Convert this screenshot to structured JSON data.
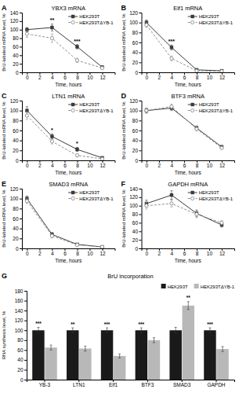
{
  "chart_data": [
    {
      "type": "line",
      "panel_label": "A",
      "title": "YBX3 mRNA",
      "xlabel": "Time, hours",
      "ylabel": "BrU-labeled mRNA level, %",
      "x": [
        0,
        4,
        8,
        12
      ],
      "xlim": [
        -0.8,
        14
      ],
      "xticks": [
        0,
        2,
        4,
        6,
        8,
        10,
        12
      ],
      "ylim": [
        0,
        140
      ],
      "yticks": [
        0,
        20,
        40,
        60,
        80,
        100,
        120,
        140
      ],
      "grid": false,
      "legend": "upper right",
      "series": [
        {
          "name": "HEK293T",
          "color": "#3a3a3a",
          "marker": "square",
          "line_style": "solid",
          "values": [
            100,
            105,
            60,
            12
          ],
          "errors": [
            5,
            8,
            5,
            3
          ]
        },
        {
          "name": "HEK293TΔYB-1",
          "color": "#909090",
          "marker": "open-circle",
          "line_style": "dashed",
          "values": [
            90,
            80,
            28,
            10
          ],
          "errors": [
            8,
            10,
            5,
            3
          ]
        }
      ],
      "annotations": [
        {
          "x": 4,
          "y": 117,
          "text": "**"
        },
        {
          "x": 8,
          "y": 69,
          "text": "***"
        }
      ]
    },
    {
      "type": "line",
      "panel_label": "B",
      "title": "Eif1 mRNA",
      "xlabel": "Time, hours",
      "ylabel": "BrU-labeled mRNA level, %",
      "x": [
        0,
        4,
        8,
        12
      ],
      "xlim": [
        -0.8,
        14
      ],
      "xticks": [
        0,
        2,
        4,
        6,
        8,
        10,
        12
      ],
      "ylim": [
        0,
        120
      ],
      "yticks": [
        0,
        20,
        40,
        60,
        80,
        100,
        120
      ],
      "grid": false,
      "legend": "upper right",
      "series": [
        {
          "name": "HEK293T",
          "color": "#3a3a3a",
          "marker": "square",
          "line_style": "solid",
          "values": [
            100,
            50,
            5,
            3
          ],
          "errors": [
            5,
            5,
            2,
            1
          ]
        },
        {
          "name": "HEK293TΔYB-1",
          "color": "#909090",
          "marker": "open-circle",
          "line_style": "dashed",
          "values": [
            95,
            28,
            3,
            2
          ],
          "errors": [
            5,
            5,
            1,
            1
          ]
        }
      ],
      "annotations": [
        {
          "x": 4,
          "y": 59,
          "text": "***"
        }
      ]
    },
    {
      "type": "line",
      "panel_label": "C",
      "title": "LTN1 mRNA",
      "xlabel": "Time, hours",
      "ylabel": "BrU-labeled mRNA level, %",
      "x": [
        0,
        4,
        8,
        12
      ],
      "xlim": [
        -0.8,
        14
      ],
      "xticks": [
        0,
        2,
        4,
        6,
        8,
        10,
        12
      ],
      "ylim": [
        0,
        120
      ],
      "yticks": [
        0,
        20,
        40,
        60,
        80,
        100,
        120
      ],
      "grid": false,
      "legend": "upper right",
      "series": [
        {
          "name": "HEK293T",
          "color": "#3a3a3a",
          "marker": "square",
          "line_style": "solid",
          "values": [
            100,
            48,
            22,
            5
          ],
          "errors": [
            8,
            5,
            4,
            2
          ]
        },
        {
          "name": "HEK293TΔYB-1",
          "color": "#909090",
          "marker": "open-circle",
          "line_style": "dashed",
          "values": [
            90,
            38,
            10,
            3
          ],
          "errors": [
            8,
            5,
            3,
            1
          ]
        }
      ],
      "annotations": [
        {
          "x": 4,
          "y": 57,
          "text": "*"
        },
        {
          "x": 8,
          "y": 30,
          "text": "*"
        }
      ]
    },
    {
      "type": "line",
      "panel_label": "D",
      "title": "BTF3 mRNA",
      "xlabel": "Time, hours",
      "ylabel": "BrU-labeled mRNA level, %",
      "x": [
        0,
        4,
        8,
        12
      ],
      "xlim": [
        -0.8,
        14
      ],
      "xticks": [
        0,
        2,
        4,
        6,
        8,
        10,
        12
      ],
      "ylim": [
        0,
        120
      ],
      "yticks": [
        0,
        20,
        40,
        60,
        80,
        100,
        120
      ],
      "grid": false,
      "legend": "upper right",
      "series": [
        {
          "name": "HEK293T",
          "color": "#3a3a3a",
          "marker": "square",
          "line_style": "solid",
          "values": [
            100,
            105,
            65,
            27
          ],
          "errors": [
            5,
            5,
            4,
            3
          ]
        },
        {
          "name": "HEK293TΔYB-1",
          "color": "#909090",
          "marker": "open-circle",
          "line_style": "dashed",
          "values": [
            100,
            108,
            63,
            25
          ],
          "errors": [
            5,
            5,
            4,
            3
          ]
        }
      ]
    },
    {
      "type": "line",
      "panel_label": "E",
      "title": "SMAD3 mRNA",
      "xlabel": "Time, hours",
      "ylabel": "BrU-labeled mRNA level, %",
      "x": [
        0,
        4,
        8,
        12
      ],
      "xlim": [
        -0.8,
        14
      ],
      "xticks": [
        0,
        2,
        4,
        6,
        8,
        10,
        12
      ],
      "ylim": [
        0,
        120
      ],
      "yticks": [
        0,
        20,
        40,
        60,
        80,
        100,
        120
      ],
      "grid": false,
      "legend": "upper right",
      "series": [
        {
          "name": "HEK293T",
          "color": "#3a3a3a",
          "marker": "square",
          "line_style": "solid",
          "values": [
            100,
            28,
            8,
            3
          ],
          "errors": [
            5,
            4,
            2,
            1
          ]
        },
        {
          "name": "HEK293TΔYB-1",
          "color": "#909090",
          "marker": "open-circle",
          "line_style": "dashed",
          "values": [
            95,
            25,
            7,
            3
          ],
          "errors": [
            5,
            4,
            2,
            1
          ]
        }
      ]
    },
    {
      "type": "line",
      "panel_label": "F",
      "title": "GAPDH mRNA",
      "xlabel": "Time, hours",
      "ylabel": "BrU-labeled mRNA level, %",
      "x": [
        0,
        4,
        8,
        12
      ],
      "xlim": [
        -0.8,
        14
      ],
      "xticks": [
        0,
        2,
        4,
        6,
        8,
        10,
        12
      ],
      "ylim": [
        0,
        140
      ],
      "yticks": [
        0,
        20,
        40,
        60,
        80,
        100,
        120,
        140
      ],
      "grid": false,
      "legend": "upper right",
      "series": [
        {
          "name": "HEK293T",
          "color": "#3a3a3a",
          "marker": "square",
          "line_style": "solid",
          "values": [
            105,
            125,
            82,
            55
          ],
          "errors": [
            8,
            10,
            8,
            5
          ]
        },
        {
          "name": "HEK293TΔYB-1",
          "color": "#909090",
          "marker": "open-circle",
          "line_style": "dashed",
          "values": [
            100,
            105,
            80,
            60
          ],
          "errors": [
            8,
            8,
            8,
            5
          ]
        }
      ]
    },
    {
      "type": "bar",
      "panel_label": "G",
      "title": "BrU incorporation",
      "ylabel": "RNA synthesis level, %",
      "categories": [
        "YB-3",
        "LTN1",
        "Eif1",
        "BTF3",
        "SMAD3",
        "GAPDH"
      ],
      "ylim": [
        0,
        180
      ],
      "yticks": [
        0,
        20,
        40,
        60,
        80,
        100,
        120,
        140,
        160,
        180
      ],
      "grid": false,
      "legend": "upper right",
      "series": [
        {
          "name": "HEK293T",
          "color": "#1a1a1a",
          "values": [
            100,
            100,
            100,
            100,
            100,
            100
          ],
          "errors": [
            6,
            5,
            5,
            5,
            6,
            5
          ]
        },
        {
          "name": "HEK293TΔYB-1",
          "color": "#b8b8b8",
          "values": [
            65,
            63,
            48,
            80,
            150,
            62
          ],
          "errors": [
            5,
            5,
            4,
            5,
            8,
            5
          ]
        }
      ],
      "annotations": [
        {
          "category": "YB-3",
          "series": "HEK293T",
          "y": 110,
          "text": "***"
        },
        {
          "category": "LTN1",
          "series": "HEK293T",
          "y": 109,
          "text": "**"
        },
        {
          "category": "Eif1",
          "series": "HEK293T",
          "y": 109,
          "text": "***"
        },
        {
          "category": "BTF3",
          "series": "HEK293T",
          "y": 109,
          "text": "***"
        },
        {
          "category": "SMAD3",
          "series": "HEK293TΔYB-1",
          "y": 162,
          "text": "**"
        },
        {
          "category": "GAPDH",
          "series": "HEK293T",
          "y": 109,
          "text": "***"
        }
      ]
    }
  ]
}
